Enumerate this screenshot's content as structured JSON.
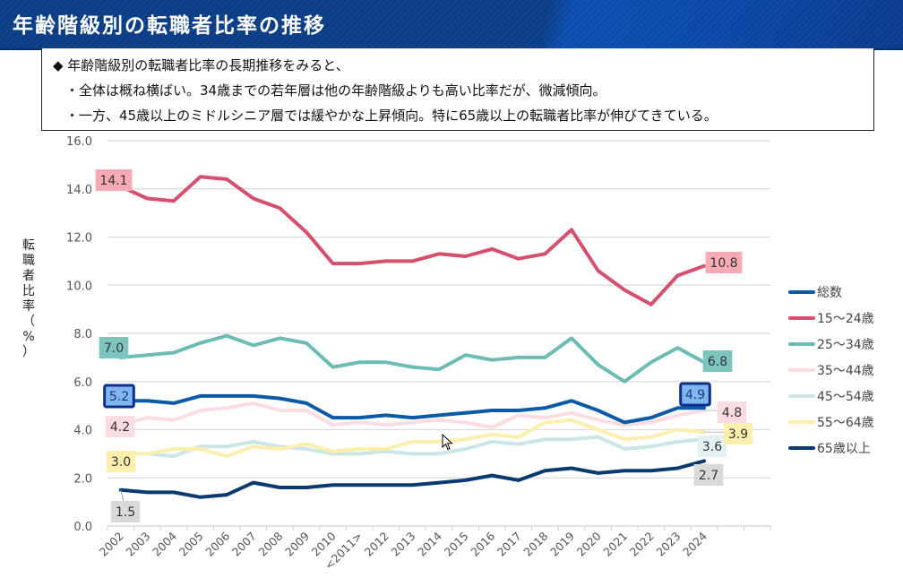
{
  "header": {
    "title": "年齢階級別の転職者比率の推移"
  },
  "summary": {
    "lines": [
      "◆ 年齢階級別の転職者比率の長期推移をみると、",
      "・全体は概ね横ばい。34歳までの若年層は他の年齢階級よりも高い比率だが、微減傾向。",
      "・一方、45歳以上のミドルシニア層では緩やかな上昇傾向。特に65歳以上の転職者比率が伸びてきている。"
    ]
  },
  "chart_data": {
    "type": "line",
    "title": "",
    "xlabel": "",
    "ylabel": "転職者比率（%）",
    "ylabel_chars": [
      "転",
      "職",
      "者",
      "比",
      "率",
      "（",
      "%",
      "）"
    ],
    "ylim": [
      0,
      16
    ],
    "yticks": [
      "0.0",
      "2.0",
      "4.0",
      "6.0",
      "8.0",
      "10.0",
      "12.0",
      "14.0",
      "16.0"
    ],
    "grid": true,
    "legend_position": "right",
    "categories": [
      "2002",
      "2003",
      "2004",
      "2005",
      "2006",
      "2007",
      "2008",
      "2009",
      "2010",
      "<2011>",
      "2012",
      "2013",
      "2014",
      "2015",
      "2016",
      "2017",
      "2018",
      "2019",
      "2020",
      "2021",
      "2022",
      "2023",
      "2024"
    ],
    "series": [
      {
        "name": "総数",
        "color": "#0b5aa8",
        "values": [
          5.2,
          5.2,
          5.1,
          5.4,
          5.4,
          5.4,
          5.3,
          5.1,
          4.5,
          4.5,
          4.6,
          4.5,
          4.6,
          4.7,
          4.8,
          4.8,
          4.9,
          5.2,
          4.8,
          4.3,
          4.5,
          4.9,
          4.9
        ],
        "label_first": "5.2",
        "label_last": "4.9",
        "label_bg": "#7fb6f2",
        "label_border": "#0d2f8a"
      },
      {
        "name": "15〜24歳",
        "color": "#d4506e",
        "values": [
          14.1,
          13.6,
          13.5,
          14.5,
          14.4,
          13.6,
          13.2,
          12.2,
          10.9,
          10.9,
          11.0,
          11.0,
          11.3,
          11.2,
          11.5,
          11.1,
          11.3,
          12.3,
          10.6,
          9.8,
          9.2,
          10.4,
          10.8
        ],
        "label_first": "14.1",
        "label_last": "10.8",
        "label_bg": "#f6aab4"
      },
      {
        "name": "25〜34歳",
        "color": "#6cbcb4",
        "values": [
          7.0,
          7.1,
          7.2,
          7.6,
          7.9,
          7.5,
          7.8,
          7.6,
          6.6,
          6.8,
          6.8,
          6.6,
          6.5,
          7.1,
          6.9,
          7.0,
          7.0,
          7.8,
          6.7,
          6.0,
          6.8,
          7.4,
          6.8
        ],
        "label_first": "7.0",
        "label_last": "6.8",
        "label_bg": "#7cc4bd"
      },
      {
        "name": "35〜44歳",
        "color": "#fbdde1",
        "values": [
          4.2,
          4.5,
          4.4,
          4.8,
          4.9,
          5.1,
          4.8,
          4.8,
          4.2,
          4.3,
          4.2,
          4.3,
          4.4,
          4.3,
          4.1,
          4.6,
          4.5,
          4.7,
          4.4,
          4.2,
          4.3,
          4.6,
          4.8
        ],
        "label_first": "4.2",
        "label_last": "4.8",
        "label_bg": "#fbdde1"
      },
      {
        "name": "45〜54歳",
        "color": "#cbe6e4",
        "values": [
          3.0,
          3.0,
          2.9,
          3.3,
          3.3,
          3.5,
          3.3,
          3.2,
          3.0,
          3.0,
          3.1,
          3.0,
          3.0,
          3.2,
          3.5,
          3.4,
          3.6,
          3.6,
          3.7,
          3.2,
          3.3,
          3.5,
          3.6
        ],
        "label_first": "",
        "label_last": "3.6",
        "label_bg": "#e3f2f1"
      },
      {
        "name": "55〜64歳",
        "color": "#fcefae",
        "values": [
          3.0,
          3.0,
          3.2,
          3.2,
          2.9,
          3.3,
          3.2,
          3.4,
          3.1,
          3.2,
          3.2,
          3.5,
          3.5,
          3.6,
          3.8,
          3.7,
          4.3,
          4.4,
          4.0,
          3.6,
          3.7,
          4.0,
          3.9
        ],
        "label_first": "3.0",
        "label_last": "3.9",
        "label_bg": "#fcefae"
      },
      {
        "name": "65歳以上",
        "color": "#0a3a6e",
        "values": [
          1.5,
          1.4,
          1.4,
          1.2,
          1.3,
          1.8,
          1.6,
          1.6,
          1.7,
          1.7,
          1.7,
          1.7,
          1.8,
          1.9,
          2.1,
          1.9,
          2.3,
          2.4,
          2.2,
          2.3,
          2.3,
          2.4,
          2.7
        ],
        "label_first": "1.5",
        "label_last": "2.7",
        "label_bg": "#d9d9d9"
      }
    ]
  }
}
